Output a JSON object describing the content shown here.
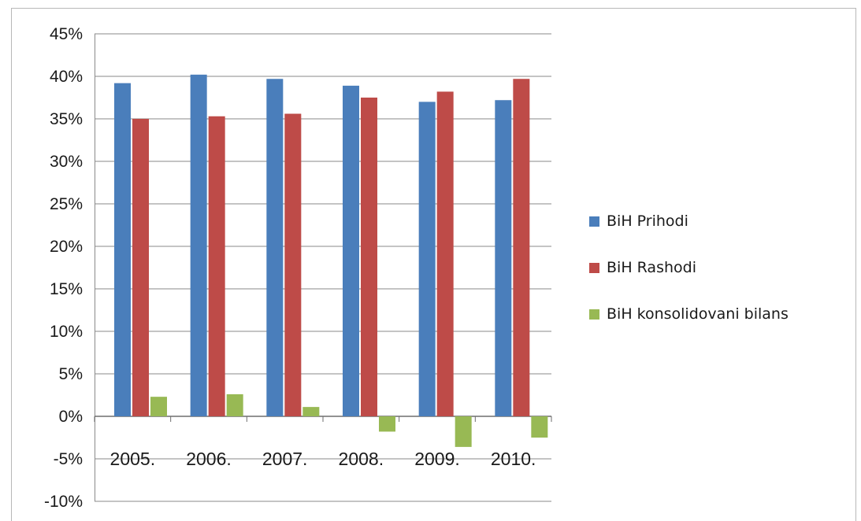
{
  "chart_data": {
    "type": "bar",
    "categories": [
      "2005.",
      "2006.",
      "2007.",
      "2008.",
      "2009.",
      "2010."
    ],
    "series": [
      {
        "name": "BiH Prihodi",
        "color": "#4a7ebb",
        "values": [
          39.2,
          40.2,
          39.7,
          38.9,
          37.0,
          37.2
        ]
      },
      {
        "name": "BiH Rashodi",
        "color": "#be4b48",
        "values": [
          35.0,
          35.3,
          35.6,
          37.5,
          38.2,
          39.7
        ]
      },
      {
        "name": "BiH konsolidovani bilans",
        "color": "#98b954",
        "values": [
          2.3,
          2.6,
          1.1,
          -1.8,
          -3.6,
          -2.5
        ]
      }
    ],
    "ylim": [
      -10,
      45
    ],
    "yticks": [
      45,
      40,
      35,
      30,
      25,
      20,
      15,
      10,
      5,
      0,
      -5,
      -10
    ],
    "ytick_labels": [
      "45%",
      "40%",
      "35%",
      "30%",
      "25%",
      "20%",
      "15%",
      "10%",
      "5%",
      "0%",
      "-5%",
      "-10%"
    ],
    "grid": true,
    "legend_position": "right"
  }
}
